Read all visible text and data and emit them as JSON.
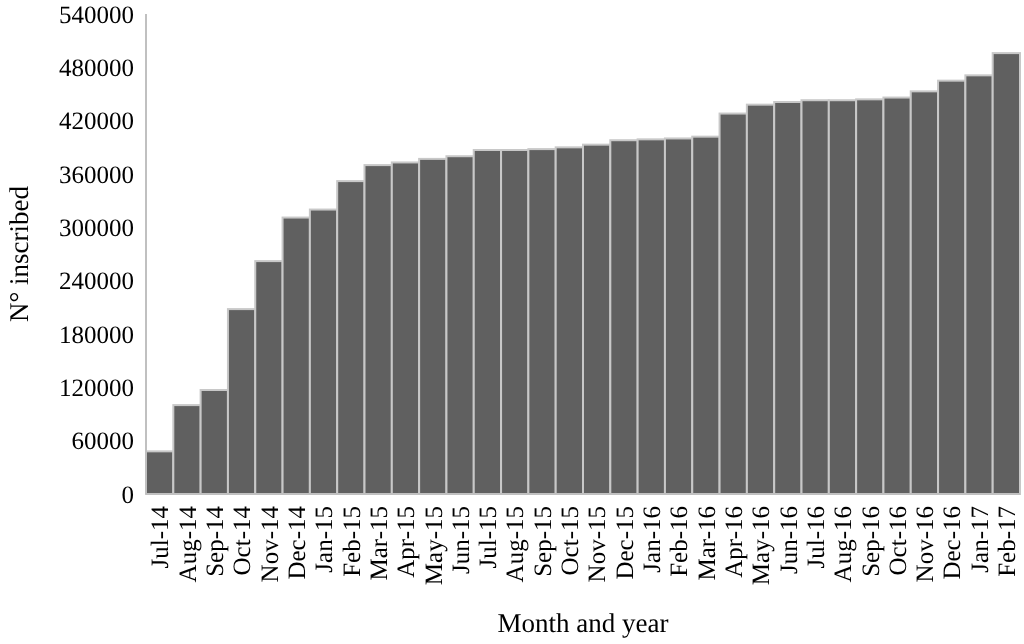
{
  "chart_data": {
    "type": "bar",
    "xlabel": "Month and year",
    "ylabel": "N° inscribed",
    "categories": [
      "Jul-14",
      "Aug-14",
      "Sep-14",
      "Oct-14",
      "Nov-14",
      "Dec-14",
      "Jan-15",
      "Feb-15",
      "Mar-15",
      "Apr-15",
      "May-15",
      "Jun-15",
      "Jul-15",
      "Aug-15",
      "Sep-15",
      "Oct-15",
      "Nov-15",
      "Dec-15",
      "Jan-16",
      "Feb-16",
      "Mar-16",
      "Apr-16",
      "May-16",
      "Jun-16",
      "Jul-16",
      "Aug-16",
      "Sep-16",
      "Oct-16",
      "Nov-16",
      "Dec-16",
      "Jan-17",
      "Feb-17"
    ],
    "values": [
      48000,
      100000,
      117000,
      208000,
      262000,
      311000,
      320000,
      352000,
      370000,
      373000,
      377000,
      380000,
      387000,
      387000,
      388000,
      390000,
      393000,
      398000,
      399000,
      400000,
      402000,
      428000,
      438000,
      441000,
      443000,
      443000,
      444000,
      446000,
      453000,
      465000,
      471000,
      496000
    ],
    "color": "#606060",
    "ylim": [
      0,
      540000
    ],
    "yticks": [
      0,
      60000,
      120000,
      180000,
      240000,
      300000,
      360000,
      420000,
      480000,
      540000
    ],
    "grid": false
  }
}
